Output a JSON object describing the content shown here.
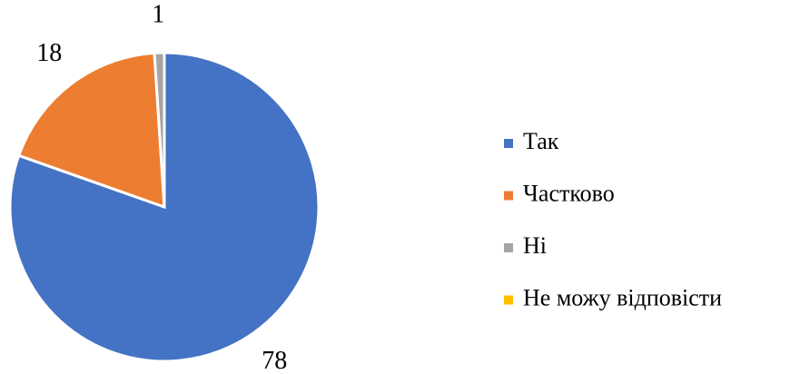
{
  "chart_data": {
    "type": "pie",
    "categories": [
      "Так",
      "Частково",
      "Ні",
      "Не можу відповісти"
    ],
    "values": [
      78,
      18,
      1,
      0
    ],
    "colors": [
      "#4472c4",
      "#ed7d31",
      "#a5a5a5",
      "#ffc000"
    ],
    "legend": "right"
  }
}
